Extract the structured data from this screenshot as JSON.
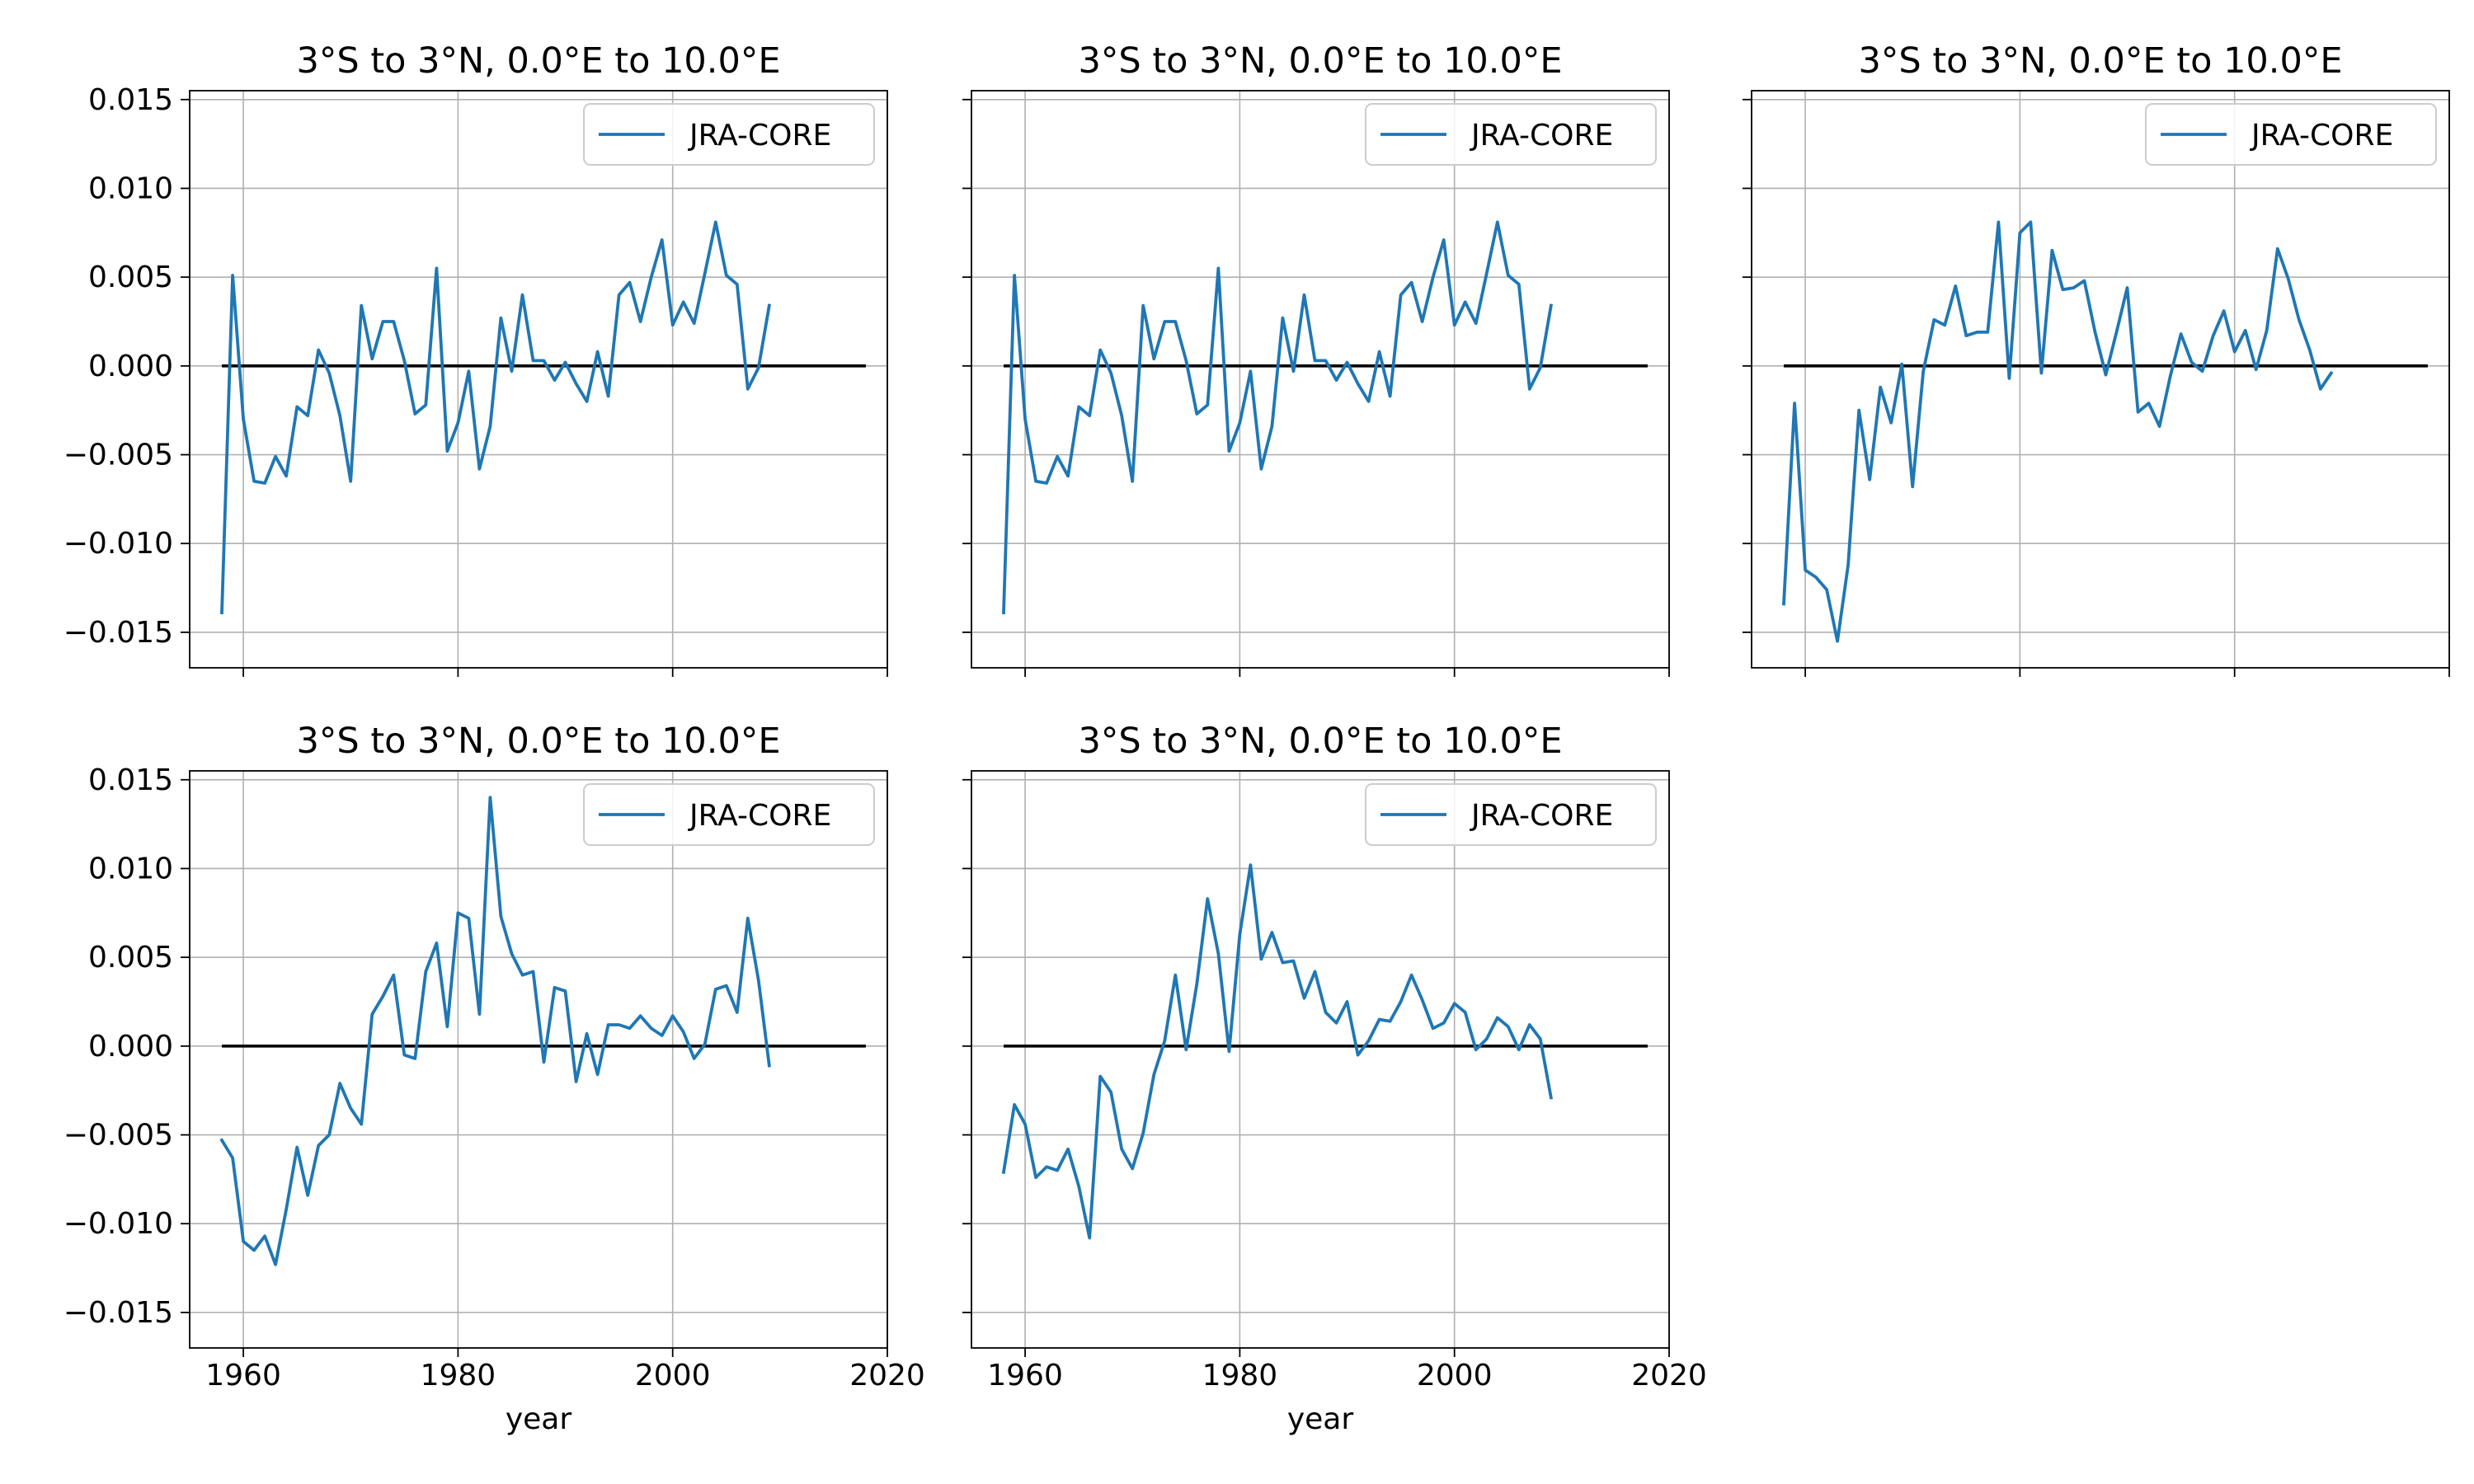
{
  "chart_data": [
    {
      "type": "line",
      "title": "3°S to 3°N, 0.0°E to 10.0°E",
      "xlabel": "",
      "ylabel": "",
      "xlim": [
        1955,
        2020
      ],
      "ylim": [
        -0.017,
        0.0155
      ],
      "xticks": [
        1960,
        1980,
        2000,
        2020
      ],
      "xtick_labels_shown": false,
      "yticks": [
        -0.015,
        -0.01,
        -0.005,
        0.0,
        0.005,
        0.01,
        0.015
      ],
      "ytick_labels": [
        "−0.015",
        "−0.010",
        "−0.005",
        "0.000",
        "0.005",
        "0.010",
        "0.015"
      ],
      "ytick_labels_shown": true,
      "grid": true,
      "legend": "top-right",
      "reference_line": {
        "y": 0,
        "x_range": [
          1958,
          2018
        ],
        "color": "#000000"
      },
      "series": [
        {
          "name": "JRA-CORE",
          "color": "#1f77b4",
          "x": [
            1958,
            1959,
            1960,
            1961,
            1962,
            1963,
            1964,
            1965,
            1966,
            1967,
            1968,
            1969,
            1970,
            1971,
            1972,
            1973,
            1974,
            1975,
            1976,
            1977,
            1978,
            1979,
            1980,
            1981,
            1982,
            1983,
            1984,
            1985,
            1986,
            1987,
            1988,
            1989,
            1990,
            1991,
            1992,
            1993,
            1994,
            1995,
            1996,
            1997,
            1998,
            1999,
            2000,
            2001,
            2002,
            2003,
            2004,
            2005,
            2006,
            2007,
            2008,
            2009
          ],
          "values": [
            -0.0139,
            0.0051,
            -0.003,
            -0.0065,
            -0.0066,
            -0.0051,
            -0.0062,
            -0.0023,
            -0.0028,
            0.0009,
            -0.0004,
            -0.0028,
            -0.0065,
            0.0034,
            0.0004,
            0.0025,
            0.0025,
            0.0003,
            -0.0027,
            -0.0022,
            0.0055,
            -0.0048,
            -0.0032,
            -0.0003,
            -0.0058,
            -0.0034,
            0.0027,
            -0.0003,
            0.004,
            0.0003,
            0.0003,
            -0.0008,
            0.0002,
            -0.001,
            -0.002,
            0.0008,
            -0.0017,
            0.004,
            0.0047,
            0.0025,
            0.005,
            0.0071,
            0.0023,
            0.0036,
            0.0024,
            0.0052,
            0.0081,
            0.0051,
            0.0046,
            -0.0013,
            -0.0001,
            0.0034
          ]
        }
      ]
    },
    {
      "type": "line",
      "title": "3°S to 3°N, 0.0°E to 10.0°E",
      "xlabel": "",
      "ylabel": "",
      "xlim": [
        1955,
        2020
      ],
      "ylim": [
        -0.017,
        0.0155
      ],
      "xticks": [
        1960,
        1980,
        2000,
        2020
      ],
      "xtick_labels_shown": false,
      "yticks": [
        -0.015,
        -0.01,
        -0.005,
        0.0,
        0.005,
        0.01,
        0.015
      ],
      "ytick_labels_shown": false,
      "grid": true,
      "legend": "top-right",
      "reference_line": {
        "y": 0,
        "x_range": [
          1958,
          2018
        ],
        "color": "#000000"
      },
      "series": [
        {
          "name": "JRA-CORE",
          "color": "#1f77b4",
          "x": [
            1958,
            1959,
            1960,
            1961,
            1962,
            1963,
            1964,
            1965,
            1966,
            1967,
            1968,
            1969,
            1970,
            1971,
            1972,
            1973,
            1974,
            1975,
            1976,
            1977,
            1978,
            1979,
            1980,
            1981,
            1982,
            1983,
            1984,
            1985,
            1986,
            1987,
            1988,
            1989,
            1990,
            1991,
            1992,
            1993,
            1994,
            1995,
            1996,
            1997,
            1998,
            1999,
            2000,
            2001,
            2002,
            2003,
            2004,
            2005,
            2006,
            2007,
            2008,
            2009
          ],
          "values": [
            -0.0139,
            0.0051,
            -0.003,
            -0.0065,
            -0.0066,
            -0.0051,
            -0.0062,
            -0.0023,
            -0.0028,
            0.0009,
            -0.0004,
            -0.0028,
            -0.0065,
            0.0034,
            0.0004,
            0.0025,
            0.0025,
            0.0003,
            -0.0027,
            -0.0022,
            0.0055,
            -0.0048,
            -0.0032,
            -0.0003,
            -0.0058,
            -0.0034,
            0.0027,
            -0.0003,
            0.004,
            0.0003,
            0.0003,
            -0.0008,
            0.0002,
            -0.001,
            -0.002,
            0.0008,
            -0.0017,
            0.004,
            0.0047,
            0.0025,
            0.005,
            0.0071,
            0.0023,
            0.0036,
            0.0024,
            0.0052,
            0.0081,
            0.0051,
            0.0046,
            -0.0013,
            -0.0001,
            0.0034
          ]
        }
      ]
    },
    {
      "type": "line",
      "title": "3°S to 3°N, 0.0°E to 10.0°E",
      "xlabel": "",
      "ylabel": "",
      "xlim": [
        1955,
        2020
      ],
      "ylim": [
        -0.017,
        0.0155
      ],
      "xticks": [
        1960,
        1980,
        2000,
        2020
      ],
      "xtick_labels_shown": false,
      "yticks": [
        -0.015,
        -0.01,
        -0.005,
        0.0,
        0.005,
        0.01,
        0.015
      ],
      "ytick_labels_shown": false,
      "grid": true,
      "legend": "top-right",
      "reference_line": {
        "y": 0,
        "x_range": [
          1958,
          2018
        ],
        "color": "#000000"
      },
      "series": [
        {
          "name": "JRA-CORE",
          "color": "#1f77b4",
          "x": [
            1958,
            1959,
            1960,
            1961,
            1962,
            1963,
            1964,
            1965,
            1966,
            1967,
            1968,
            1969,
            1970,
            1971,
            1972,
            1973,
            1974,
            1975,
            1976,
            1977,
            1978,
            1979,
            1980,
            1981,
            1982,
            1983,
            1984,
            1985,
            1986,
            1987,
            1988,
            1989,
            1990,
            1991,
            1992,
            1993,
            1994,
            1995,
            1996,
            1997,
            1998,
            1999,
            2000,
            2001,
            2002,
            2003,
            2004,
            2005,
            2006,
            2007,
            2008,
            2009
          ],
          "values": [
            -0.0134,
            -0.0021,
            -0.0115,
            -0.0119,
            -0.0126,
            -0.0155,
            -0.0112,
            -0.0025,
            -0.0064,
            -0.0012,
            -0.0032,
            0.0001,
            -0.0068,
            -0.0003,
            0.0026,
            0.0023,
            0.0045,
            0.0017,
            0.0019,
            0.0019,
            0.0081,
            -0.0007,
            0.0075,
            0.0081,
            -0.0004,
            0.0065,
            0.0043,
            0.0044,
            0.0048,
            0.0019,
            -0.0005,
            0.0019,
            0.0044,
            -0.0026,
            -0.0021,
            -0.0034,
            -0.0006,
            0.0018,
            0.0002,
            -0.0003,
            0.0017,
            0.0031,
            0.0008,
            0.002,
            -0.0002,
            0.002,
            0.0066,
            0.0049,
            0.0026,
            0.0009,
            -0.0013,
            -0.0004
          ]
        }
      ]
    },
    {
      "type": "line",
      "title": "3°S to 3°N, 0.0°E to 10.0°E",
      "xlabel": "year",
      "ylabel": "",
      "xlim": [
        1955,
        2020
      ],
      "ylim": [
        -0.017,
        0.0155
      ],
      "xticks": [
        1960,
        1980,
        2000,
        2020
      ],
      "xtick_labels": [
        "1960",
        "1980",
        "2000",
        "2020"
      ],
      "xtick_labels_shown": true,
      "yticks": [
        -0.015,
        -0.01,
        -0.005,
        0.0,
        0.005,
        0.01,
        0.015
      ],
      "ytick_labels": [
        "−0.015",
        "−0.010",
        "−0.005",
        "0.000",
        "0.005",
        "0.010",
        "0.015"
      ],
      "ytick_labels_shown": true,
      "grid": true,
      "legend": "top-right",
      "reference_line": {
        "y": 0,
        "x_range": [
          1958,
          2018
        ],
        "color": "#000000"
      },
      "series": [
        {
          "name": "JRA-CORE",
          "color": "#1f77b4",
          "x": [
            1958,
            1959,
            1960,
            1961,
            1962,
            1963,
            1964,
            1965,
            1966,
            1967,
            1968,
            1969,
            1970,
            1971,
            1972,
            1973,
            1974,
            1975,
            1976,
            1977,
            1978,
            1979,
            1980,
            1981,
            1982,
            1983,
            1984,
            1985,
            1986,
            1987,
            1988,
            1989,
            1990,
            1991,
            1992,
            1993,
            1994,
            1995,
            1996,
            1997,
            1998,
            1999,
            2000,
            2001,
            2002,
            2003,
            2004,
            2005,
            2006,
            2007,
            2008,
            2009
          ],
          "values": [
            -0.0053,
            -0.0063,
            -0.011,
            -0.0115,
            -0.0107,
            -0.0123,
            -0.0092,
            -0.0057,
            -0.0084,
            -0.0056,
            -0.005,
            -0.0021,
            -0.0035,
            -0.0044,
            0.0018,
            0.0028,
            0.004,
            -0.0005,
            -0.0007,
            0.0042,
            0.0058,
            0.0011,
            0.0075,
            0.0072,
            0.0018,
            0.014,
            0.0073,
            0.0052,
            0.004,
            0.0042,
            -0.0009,
            0.0033,
            0.0031,
            -0.002,
            0.0007,
            -0.0016,
            0.0012,
            0.0012,
            0.001,
            0.0017,
            0.001,
            0.0006,
            0.0017,
            0.0008,
            -0.0007,
            0.0001,
            0.0032,
            0.0034,
            0.0019,
            0.0072,
            0.0037,
            -0.0011
          ]
        }
      ]
    },
    {
      "type": "line",
      "title": "3°S to 3°N, 0.0°E to 10.0°E",
      "xlabel": "year",
      "ylabel": "",
      "xlim": [
        1955,
        2020
      ],
      "ylim": [
        -0.017,
        0.0155
      ],
      "xticks": [
        1960,
        1980,
        2000,
        2020
      ],
      "xtick_labels": [
        "1960",
        "1980",
        "2000",
        "2020"
      ],
      "xtick_labels_shown": true,
      "yticks": [
        -0.015,
        -0.01,
        -0.005,
        0.0,
        0.005,
        0.01,
        0.015
      ],
      "ytick_labels_shown": false,
      "grid": true,
      "legend": "top-right",
      "reference_line": {
        "y": 0,
        "x_range": [
          1958,
          2018
        ],
        "color": "#000000"
      },
      "series": [
        {
          "name": "JRA-CORE",
          "color": "#1f77b4",
          "x": [
            1958,
            1959,
            1960,
            1961,
            1962,
            1963,
            1964,
            1965,
            1966,
            1967,
            1968,
            1969,
            1970,
            1971,
            1972,
            1973,
            1974,
            1975,
            1976,
            1977,
            1978,
            1979,
            1980,
            1981,
            1982,
            1983,
            1984,
            1985,
            1986,
            1987,
            1988,
            1989,
            1990,
            1991,
            1992,
            1993,
            1994,
            1995,
            1996,
            1997,
            1998,
            1999,
            2000,
            2001,
            2002,
            2003,
            2004,
            2005,
            2006,
            2007,
            2008,
            2009
          ],
          "values": [
            -0.0071,
            -0.0033,
            -0.0044,
            -0.0074,
            -0.0068,
            -0.007,
            -0.0058,
            -0.0079,
            -0.0108,
            -0.0017,
            -0.0026,
            -0.0058,
            -0.0069,
            -0.0049,
            -0.0016,
            0.0003,
            0.004,
            -0.0002,
            0.0035,
            0.0083,
            0.0052,
            -0.0003,
            0.0063,
            0.0102,
            0.0049,
            0.0064,
            0.0047,
            0.0048,
            0.0027,
            0.0042,
            0.0019,
            0.0013,
            0.0025,
            -0.0005,
            0.0003,
            0.0015,
            0.0014,
            0.0025,
            0.004,
            0.0026,
            0.001,
            0.0013,
            0.0024,
            0.0019,
            -0.0002,
            0.0004,
            0.0016,
            0.0011,
            -0.0002,
            0.0012,
            0.0004,
            -0.0029
          ]
        }
      ]
    }
  ]
}
